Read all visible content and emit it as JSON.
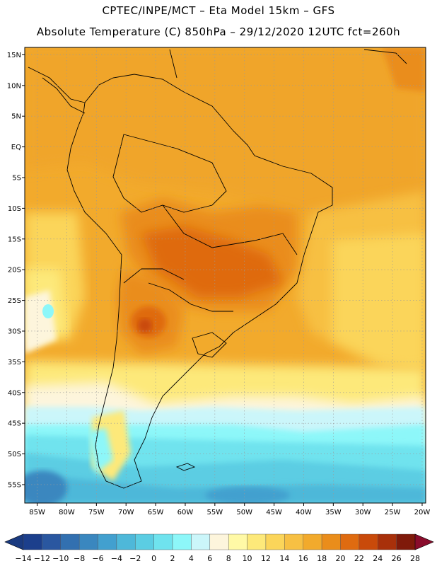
{
  "header": {
    "title_line1": "CPTEC/INPE/MCT –  Eta Model 15km – GFS",
    "title_line2": "Absolute Temperature (C) 850hPa – 29/12/2020 12UTC fct=260h"
  },
  "map": {
    "lat_labels": [
      "15N",
      "10N",
      "5N",
      "EQ",
      "5S",
      "10S",
      "15S",
      "20S",
      "25S",
      "30S",
      "35S",
      "40S",
      "45S",
      "50S",
      "55S"
    ],
    "lon_labels": [
      "85W",
      "80W",
      "75W",
      "70W",
      "65W",
      "60W",
      "55W",
      "50W",
      "45W",
      "40W",
      "35W",
      "30W",
      "25W",
      "20W"
    ],
    "lat_values": [
      15,
      10,
      5,
      0,
      -5,
      -10,
      -15,
      -20,
      -25,
      -30,
      -35,
      -40,
      -45,
      -50,
      -55
    ],
    "lon_values": [
      -85,
      -80,
      -75,
      -70,
      -65,
      -60,
      -55,
      -50,
      -45,
      -40,
      -35,
      -30,
      -25,
      -20
    ]
  },
  "colorbar": {
    "labels": [
      "-14",
      "-12",
      "-10",
      "-8",
      "-6",
      "-4",
      "-2",
      "0",
      "2",
      "4",
      "6",
      "8",
      "10",
      "12",
      "14",
      "16",
      "18",
      "20",
      "22",
      "24",
      "26",
      "28"
    ],
    "colors": [
      "#1c3f8c",
      "#2a57a0",
      "#3270b0",
      "#3a87bf",
      "#42a0cf",
      "#4eb8d9",
      "#5bcde3",
      "#6fe3ee",
      "#8df7f9",
      "#cbf6fa",
      "#fdf5dc",
      "#fff9a6",
      "#fde97a",
      "#fbd55a",
      "#f7c043",
      "#f2aa2c",
      "#ea8d1b",
      "#df6b10",
      "#c94a0a",
      "#a8300a",
      "#7f1a0a",
      "#8a0c2c"
    ]
  }
}
